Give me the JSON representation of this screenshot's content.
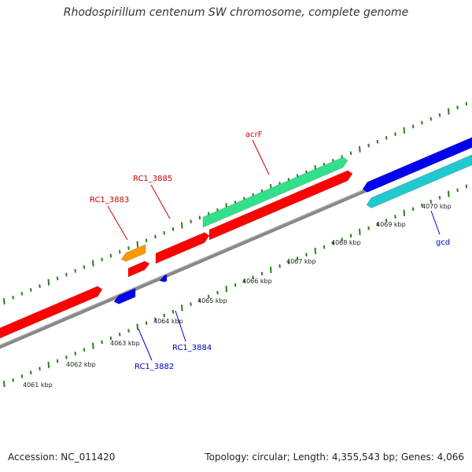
{
  "title": "Rhodospirillum centenum SW chromosome, complete genome",
  "footer": {
    "accession": "Accession: NC_011420",
    "topology": "Topology: circular; Length: 4,355,543 bp; Genes: 4,066"
  },
  "colors": {
    "backbone": "#888888",
    "tick": "#2e7d1f",
    "forward_label": "#cc0000",
    "reverse_label": "#0000cc",
    "red": "#ff0000",
    "green": "#33e08a",
    "orange": "#ff9900",
    "blue": "#0000ee",
    "cyan": "#22c8d0"
  },
  "tick_labels": [
    "4061 kbp",
    "4062 kbp",
    "4063 kbp",
    "4064 kbp",
    "4065 kbp",
    "4066 kbp",
    "4067 kbp",
    "4068 kbp",
    "4069 kbp",
    "4070 kbp"
  ],
  "gene_labels": [
    {
      "name": "acrF",
      "strand": "forward"
    },
    {
      "name": "RC1_3885",
      "strand": "forward"
    },
    {
      "name": "RC1_3883",
      "strand": "forward"
    },
    {
      "name": "RC1_3884",
      "strand": "reverse"
    },
    {
      "name": "RC1_3882",
      "strand": "reverse"
    },
    {
      "name": "gcd",
      "strand": "reverse"
    }
  ],
  "features": [
    {
      "id": "red-forward-left",
      "color": "red",
      "strand": "forward"
    },
    {
      "id": "orange-rc1-3883",
      "color": "orange",
      "strand": "forward"
    },
    {
      "id": "red-small-forward",
      "color": "red",
      "strand": "forward"
    },
    {
      "id": "red-rc1-3885",
      "color": "red",
      "strand": "forward"
    },
    {
      "id": "red-long-forward",
      "color": "red",
      "strand": "forward"
    },
    {
      "id": "green-acrf",
      "color": "green",
      "strand": "forward"
    },
    {
      "id": "blue-rc1-3882",
      "color": "blue",
      "strand": "reverse"
    },
    {
      "id": "blue-rc1-3884",
      "color": "blue",
      "strand": "reverse"
    },
    {
      "id": "blue-gcd",
      "color": "blue",
      "strand": "reverse"
    },
    {
      "id": "cyan-reverse",
      "color": "cyan",
      "strand": "reverse"
    }
  ]
}
